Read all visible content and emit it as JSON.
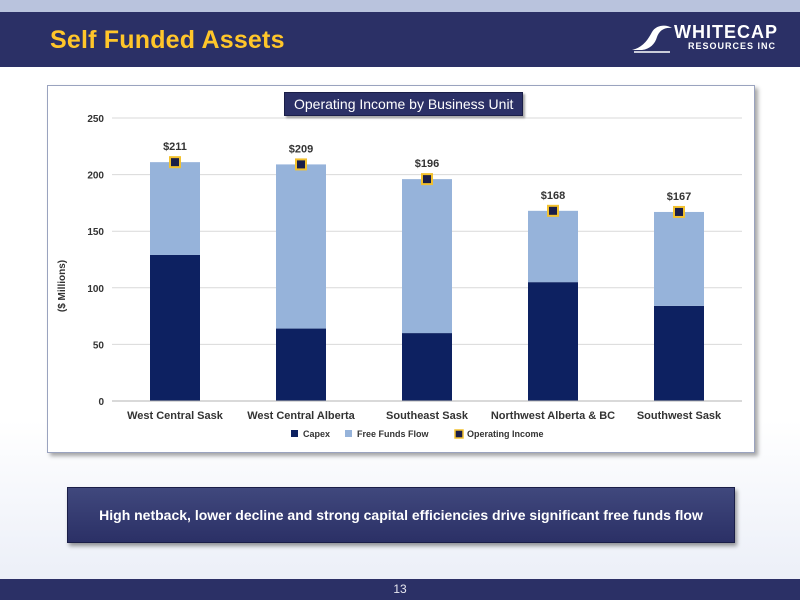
{
  "slide": {
    "title": "Self Funded Assets",
    "page_number": "13",
    "callout": "High netback, lower decline and strong capital efficiencies drive significant free funds flow"
  },
  "logo": {
    "name": "WHITECAP",
    "subtitle": "RESOURCES INC",
    "icon": "wave-icon"
  },
  "colors": {
    "header": "#2b3066",
    "title": "#ffc62a",
    "capex": "#0d2161",
    "free_funds_flow": "#96b3da",
    "operating_income_marker": "#f2c12e"
  },
  "chart_data": {
    "type": "bar",
    "stacked": true,
    "title": "Operating Income by Business Unit",
    "ylabel": "($ Millions)",
    "xlabel": "",
    "ylim": [
      0,
      250
    ],
    "yticks": [
      0,
      50,
      100,
      150,
      200,
      250
    ],
    "grid": true,
    "legend_position": "bottom",
    "categories": [
      "West Central Sask",
      "West Central Alberta",
      "Southeast Sask",
      "Northwest Alberta & BC",
      "Southwest Sask"
    ],
    "series": [
      {
        "name": "Capex",
        "values": [
          129,
          64,
          60,
          105,
          84
        ]
      },
      {
        "name": "Free Funds Flow",
        "values": [
          82,
          145,
          136,
          63,
          83
        ]
      }
    ],
    "operating_income": {
      "name": "Operating Income",
      "values": [
        211,
        209,
        196,
        168,
        167
      ],
      "labels": [
        "$211",
        "$209",
        "$196",
        "$168",
        "$167"
      ]
    }
  }
}
